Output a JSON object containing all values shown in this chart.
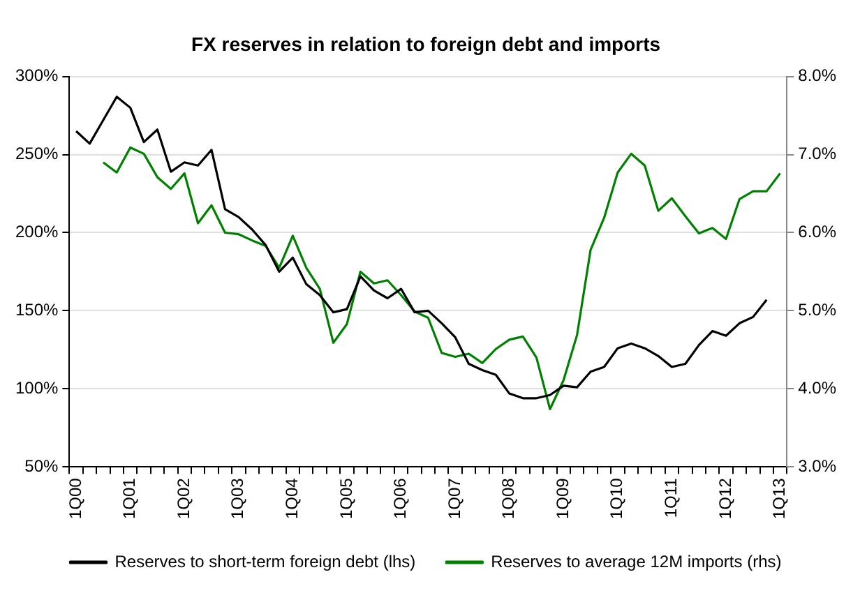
{
  "chart_data": {
    "type": "line",
    "title": "FX reserves in relation to foreign debt and imports",
    "categories": [
      "1Q00",
      null,
      null,
      null,
      "1Q01",
      null,
      null,
      null,
      "1Q02",
      null,
      null,
      null,
      "1Q03",
      null,
      null,
      null,
      "1Q04",
      null,
      null,
      null,
      "1Q05",
      null,
      null,
      null,
      "1Q06",
      null,
      null,
      null,
      "1Q07",
      null,
      null,
      null,
      "1Q08",
      null,
      null,
      null,
      "1Q09",
      null,
      null,
      null,
      "1Q10",
      null,
      null,
      null,
      "1Q11",
      null,
      null,
      null,
      "1Q12",
      null,
      null,
      null,
      "1Q13"
    ],
    "series": [
      {
        "name": "Reserves to short-term foreign debt (lhs)",
        "color": "#000000",
        "values": [
          265,
          257,
          272,
          287,
          280,
          258,
          266,
          239,
          245,
          243,
          253,
          215,
          210,
          202,
          192,
          175,
          184,
          167,
          160,
          149,
          151,
          172,
          163,
          158,
          164,
          149,
          150,
          142,
          133,
          116,
          112,
          109,
          97,
          94,
          94,
          96,
          102,
          101,
          111,
          114,
          126,
          129,
          126,
          121,
          114,
          116,
          128,
          137,
          134,
          142,
          146,
          157,
          null
        ]
      },
      {
        "name": "Reserves to average 12M imports (rhs)",
        "color": "#008000",
        "axis": "y2",
        "values": [
          null,
          null,
          6.9,
          6.77,
          7.09,
          7.01,
          6.71,
          6.56,
          6.76,
          6.12,
          6.35,
          6.0,
          5.98,
          5.9,
          5.83,
          5.55,
          5.96,
          5.55,
          5.28,
          4.59,
          4.83,
          5.5,
          5.35,
          5.39,
          5.2,
          4.99,
          4.91,
          4.46,
          4.41,
          4.45,
          4.33,
          4.51,
          4.63,
          4.67,
          4.4,
          3.74,
          4.11,
          4.69,
          5.78,
          6.19,
          6.77,
          7.01,
          6.86,
          6.28,
          6.44,
          6.21,
          5.99,
          6.06,
          5.92,
          6.43,
          6.53,
          6.53,
          6.76
        ]
      }
    ],
    "ylim": [
      50,
      300
    ],
    "yticks": [
      {
        "value": 50,
        "label": "50%"
      },
      {
        "value": 100,
        "label": "100%"
      },
      {
        "value": 150,
        "label": "150%"
      },
      {
        "value": 200,
        "label": "200%"
      },
      {
        "value": 250,
        "label": "250%"
      },
      {
        "value": 300,
        "label": "300%"
      }
    ],
    "y2lim": [
      3,
      8
    ],
    "y2ticks": [
      {
        "value": 3,
        "label": "3.0%"
      },
      {
        "value": 4,
        "label": "4.0%"
      },
      {
        "value": 5,
        "label": "5.0%"
      },
      {
        "value": 6,
        "label": "6.0%"
      },
      {
        "value": 7,
        "label": "7.0%"
      },
      {
        "value": 8,
        "label": "8.0%"
      }
    ],
    "grid": "y",
    "legend": "bottom",
    "marker": "none",
    "line_style": "solid"
  }
}
